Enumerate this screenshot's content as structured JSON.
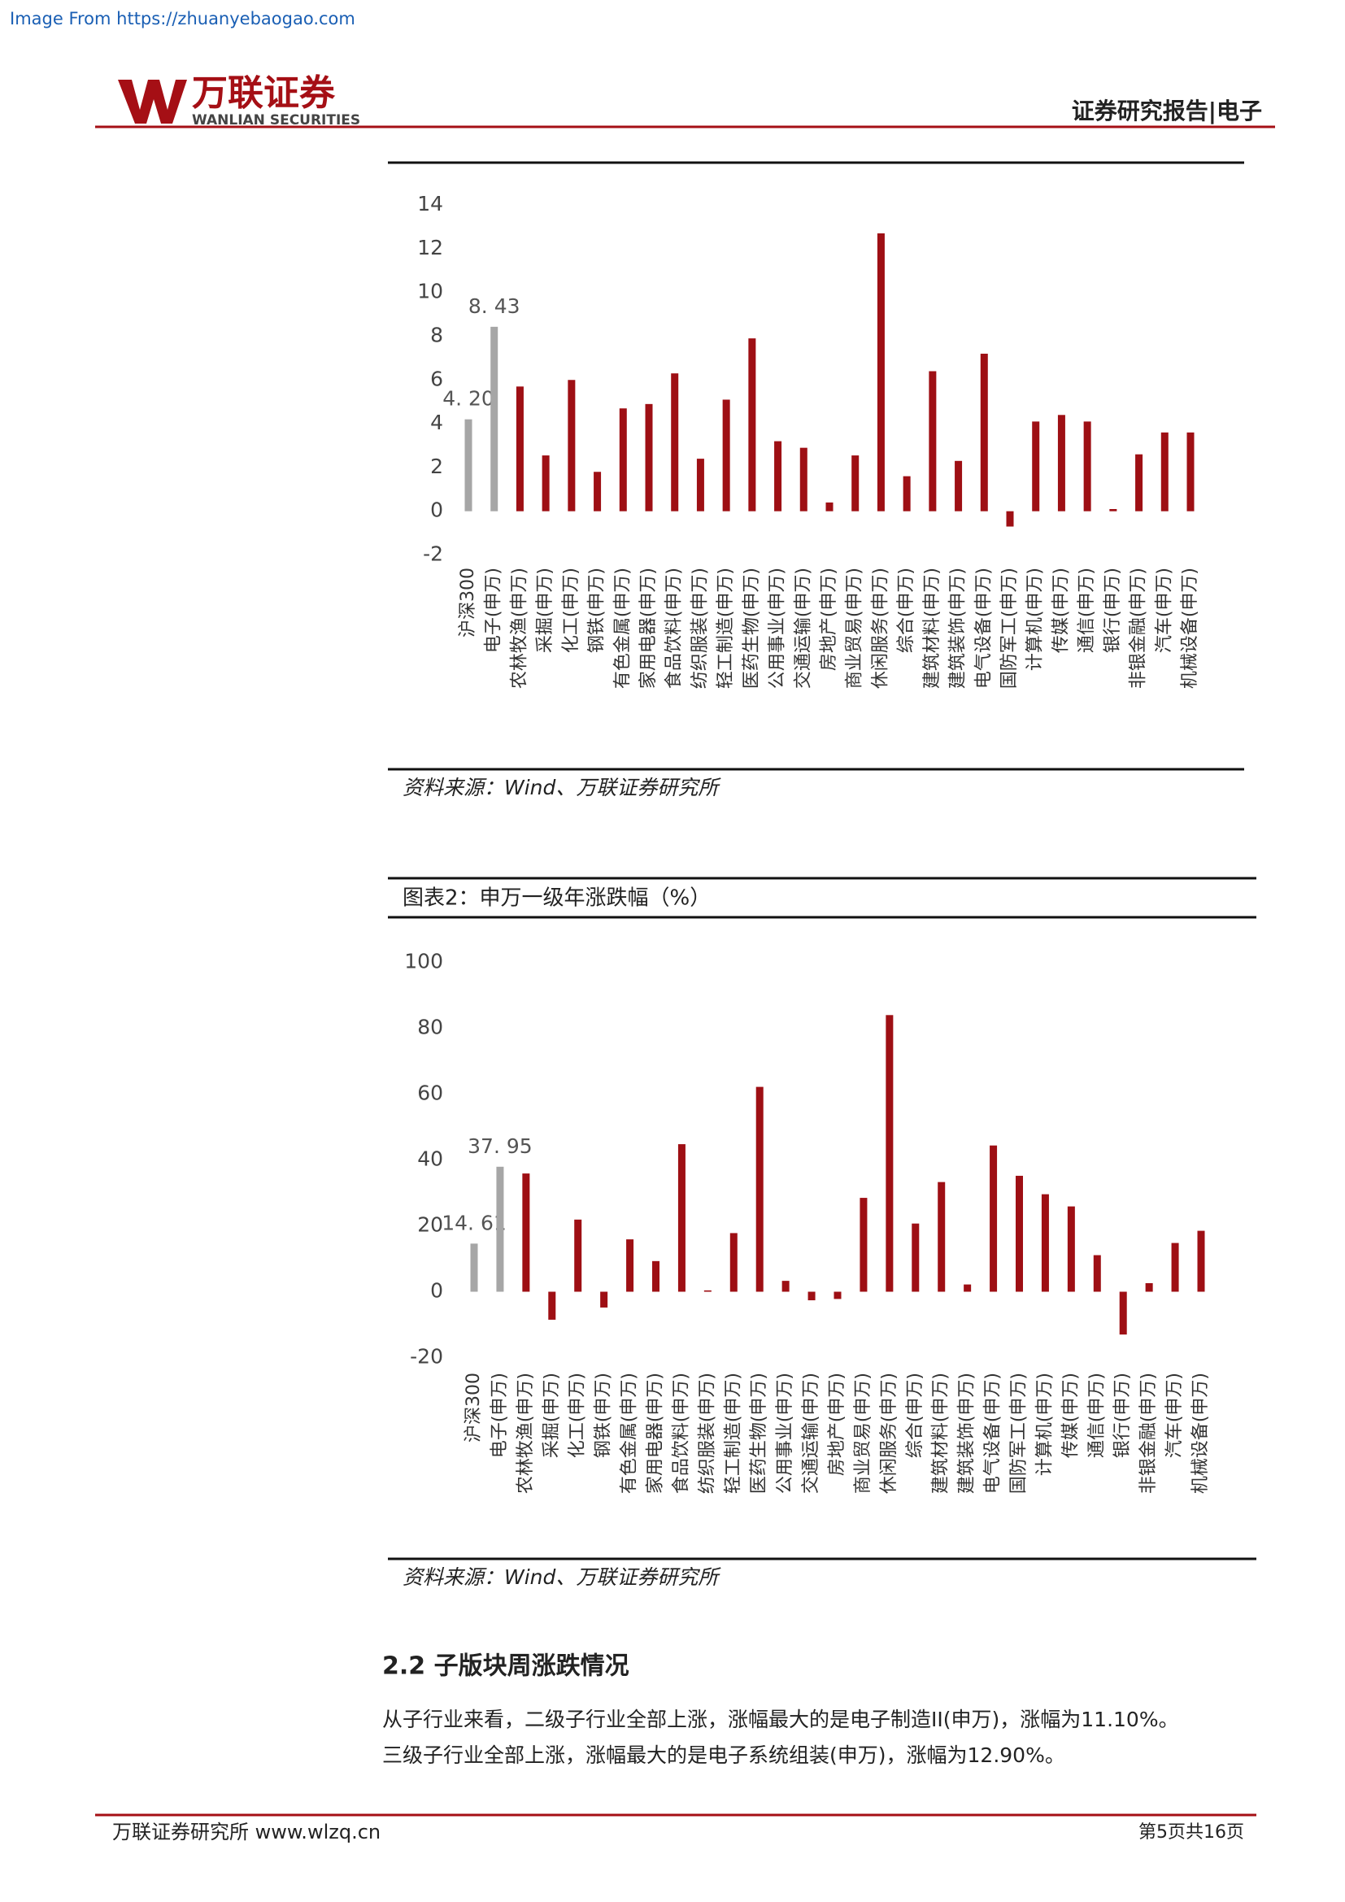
{
  "header": {
    "source_note": "Image From https://zhuanyebaogao.com",
    "logo_cn": "万联证券",
    "logo_en": "WANLIAN SECURITIES",
    "report_type": "证券研究报告|电子"
  },
  "chart_data": [
    {
      "type": "bar",
      "categories": [
        "沪深300",
        "电子(申万)",
        "农林牧渔(申万)",
        "采掘(申万)",
        "化工(申万)",
        "钢铁(申万)",
        "有色金属(申万)",
        "家用电器(申万)",
        "食品饮料(申万)",
        "纺织服装(申万)",
        "轻工制造(申万)",
        "医药生物(申万)",
        "公用事业(申万)",
        "交通运输(申万)",
        "房地产(申万)",
        "商业贸易(申万)",
        "休闲服务(申万)",
        "综合(申万)",
        "建筑材料(申万)",
        "建筑装饰(申万)",
        "电气设备(申万)",
        "国防军工(申万)",
        "计算机(申万)",
        "传媒(申万)",
        "通信(申万)",
        "银行(申万)",
        "非银金融(申万)",
        "汽车(申万)",
        "机械设备(申万)"
      ],
      "values": [
        4.2,
        8.43,
        5.7,
        2.55,
        6.0,
        1.8,
        4.7,
        4.9,
        6.3,
        2.4,
        5.1,
        7.9,
        3.2,
        2.9,
        0.4,
        2.55,
        12.7,
        1.6,
        6.4,
        2.3,
        7.2,
        -0.7,
        4.1,
        4.4,
        4.1,
        0.1,
        2.6,
        3.6,
        3.6
      ],
      "value_labels": [
        "4. 20",
        "8. 43",
        null,
        null,
        null,
        null,
        null,
        null,
        null,
        null,
        null,
        null,
        null,
        null,
        null,
        null,
        null,
        null,
        null,
        null,
        null,
        null,
        null,
        null,
        null,
        null,
        null,
        null,
        null
      ],
      "colors": [
        "#a6a6a6",
        "#a6a6a6",
        "#9e0f14",
        "#9e0f14",
        "#9e0f14",
        "#9e0f14",
        "#9e0f14",
        "#9e0f14",
        "#9e0f14",
        "#9e0f14",
        "#9e0f14",
        "#9e0f14",
        "#9e0f14",
        "#9e0f14",
        "#9e0f14",
        "#9e0f14",
        "#9e0f14",
        "#9e0f14",
        "#9e0f14",
        "#9e0f14",
        "#9e0f14",
        "#9e0f14",
        "#9e0f14",
        "#9e0f14",
        "#9e0f14",
        "#9e0f14",
        "#9e0f14",
        "#9e0f14",
        "#9e0f14"
      ],
      "ylim": [
        -2,
        14
      ],
      "yticks": [
        -2,
        0,
        2,
        4,
        6,
        8,
        10,
        12,
        14
      ],
      "source": "资料来源：Wind、万联证券研究所"
    },
    {
      "type": "bar",
      "title": "图表2：申万一级年涨跌幅（%）",
      "categories": [
        "沪深300",
        "电子(申万)",
        "农林牧渔(申万)",
        "采掘(申万)",
        "化工(申万)",
        "钢铁(申万)",
        "有色金属(申万)",
        "家用电器(申万)",
        "食品饮料(申万)",
        "纺织服装(申万)",
        "轻工制造(申万)",
        "医药生物(申万)",
        "公用事业(申万)",
        "交通运输(申万)",
        "房地产(申万)",
        "商业贸易(申万)",
        "休闲服务(申万)",
        "综合(申万)",
        "建筑材料(申万)",
        "建筑装饰(申万)",
        "电气设备(申万)",
        "国防军工(申万)",
        "计算机(申万)",
        "传媒(申万)",
        "通信(申万)",
        "银行(申万)",
        "非银金融(申万)",
        "汽车(申万)",
        "机械设备(申万)"
      ],
      "values": [
        14.61,
        37.95,
        35.9,
        -8.5,
        21.9,
        -4.8,
        15.9,
        9.3,
        44.8,
        0.4,
        17.8,
        62.2,
        3.3,
        -2.6,
        -2.2,
        28.5,
        84,
        20.7,
        33.3,
        2.2,
        44.4,
        35.2,
        29.6,
        25.9,
        11.1,
        -13,
        2.6,
        14.8,
        18.5
      ],
      "value_labels": [
        "14. 61",
        "37. 95",
        null,
        null,
        null,
        null,
        null,
        null,
        null,
        null,
        null,
        null,
        null,
        null,
        null,
        null,
        null,
        null,
        null,
        null,
        null,
        null,
        null,
        null,
        null,
        null,
        null,
        null,
        null
      ],
      "colors": [
        "#a6a6a6",
        "#a6a6a6",
        "#9e0f14",
        "#9e0f14",
        "#9e0f14",
        "#9e0f14",
        "#9e0f14",
        "#9e0f14",
        "#9e0f14",
        "#9e0f14",
        "#9e0f14",
        "#9e0f14",
        "#9e0f14",
        "#9e0f14",
        "#9e0f14",
        "#9e0f14",
        "#9e0f14",
        "#9e0f14",
        "#9e0f14",
        "#9e0f14",
        "#9e0f14",
        "#9e0f14",
        "#9e0f14",
        "#9e0f14",
        "#9e0f14",
        "#9e0f14",
        "#9e0f14",
        "#9e0f14",
        "#9e0f14"
      ],
      "ylim": [
        -20,
        100
      ],
      "yticks": [
        -20,
        0,
        20,
        40,
        60,
        80,
        100
      ],
      "source": "资料来源：Wind、万联证券研究所"
    }
  ],
  "section": {
    "heading": "2.2 子版块周涨跌情况",
    "paragraphs": [
      "从子行业来看，二级子行业全部上涨，涨幅最大的是电子制造II(申万)，涨幅为11.10%。",
      "三级子行业全部上涨，涨幅最大的是电子系统组装(申万)，涨幅为12.90%。"
    ]
  },
  "footer": {
    "left": "万联证券研究所 www.wlzq.cn",
    "right": "第5页共16页"
  }
}
